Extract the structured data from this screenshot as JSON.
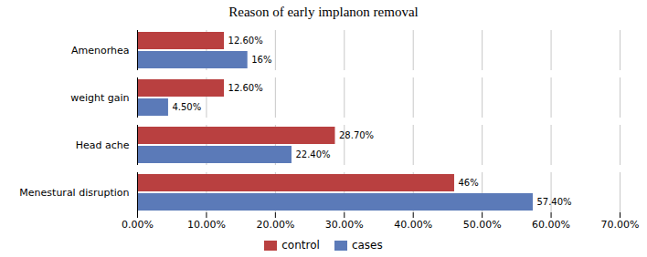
{
  "chart_data": {
    "type": "bar",
    "orientation": "horizontal",
    "title": "Reason of early implanon removal",
    "categories": [
      "Menestural disruption",
      "Head ache",
      "weight gain",
      "Amenorhea"
    ],
    "series": [
      {
        "name": "control",
        "color": "#b94040",
        "values": [
          46.0,
          28.7,
          12.6,
          12.6
        ],
        "value_labels": [
          "46%",
          "28.70%",
          "12.60%",
          "12.60%"
        ]
      },
      {
        "name": "cases",
        "color": "#5b7ab8",
        "values": [
          57.4,
          22.4,
          4.5,
          16.0
        ],
        "value_labels": [
          "57.40%",
          "22.40%",
          "4.50%",
          "16%"
        ]
      }
    ],
    "xlim": [
      0,
      70
    ],
    "xticks": [
      {
        "value": 0,
        "label": "0.00%"
      },
      {
        "value": 10,
        "label": "10.00%"
      },
      {
        "value": 20,
        "label": "20.00%"
      },
      {
        "value": 30,
        "label": "30.00%"
      },
      {
        "value": 40,
        "label": "40.00%"
      },
      {
        "value": 50,
        "label": "50.00%"
      },
      {
        "value": 60,
        "label": "60.00%"
      },
      {
        "value": 70,
        "label": "70.00%"
      }
    ],
    "grid": true,
    "legend": "bottom",
    "data_labels": true
  }
}
